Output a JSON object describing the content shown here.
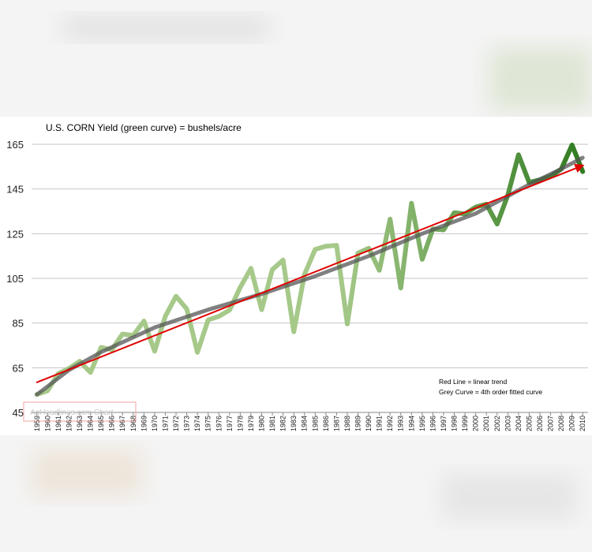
{
  "chart_data": {
    "type": "line",
    "title": "U.S. CORN Yield (green curve) = bushels/acre",
    "annotations": [
      "Red Line = linear trend",
      "Grey Curve = 4th order fitted curve"
    ],
    "watermark": "AgHeadlines.com Chart",
    "x": [
      1959,
      1960,
      1961,
      1962,
      1963,
      1964,
      1965,
      1966,
      1967,
      1968,
      1969,
      1970,
      1971,
      1972,
      1973,
      1974,
      1975,
      1976,
      1977,
      1978,
      1979,
      1980,
      1981,
      1982,
      1983,
      1984,
      1985,
      1986,
      1987,
      1988,
      1989,
      1990,
      1991,
      1992,
      1993,
      1994,
      1995,
      1996,
      1997,
      1998,
      1999,
      2000,
      2001,
      2002,
      2003,
      2004,
      2005,
      2006,
      2007,
      2008,
      2009,
      2010
    ],
    "series": [
      {
        "color": "#a6c98a",
        "color_end": "#2e7a1e",
        "values": [
          53.1,
          54.7,
          62.4,
          64.7,
          67.9,
          62.9,
          74.1,
          73.1,
          80.1,
          79.5,
          85.9,
          72.4,
          88.1,
          97.0,
          91.3,
          71.9,
          86.4,
          88.0,
          90.8,
          101.0,
          109.5,
          91.0,
          108.9,
          113.2,
          81.1,
          106.7,
          118.0,
          119.4,
          119.8,
          84.6,
          116.3,
          118.5,
          108.6,
          131.5,
          100.7,
          138.6,
          113.5,
          127.1,
          126.7,
          134.4,
          133.8,
          136.9,
          138.2,
          129.3,
          142.2,
          160.3,
          147.9,
          149.1,
          150.7,
          153.9,
          164.7,
          152.8
        ]
      },
      {
        "color": "#555555",
        "x": [
          1959,
          1962,
          1965,
          1970,
          1975,
          1980,
          1985,
          1990,
          1995,
          2000,
          2005,
          2008,
          2010
        ],
        "values": [
          53,
          64,
          72,
          83,
          91,
          98,
          106,
          115,
          125,
          134,
          147,
          154,
          159
        ]
      },
      {
        "color": "#e00000",
        "x": [
          1959,
          2010
        ],
        "values": [
          58.5,
          155.5
        ]
      }
    ],
    "ylim": [
      45,
      165
    ],
    "yticks": [
      45,
      65,
      85,
      105,
      125,
      145,
      165
    ],
    "grid": true
  }
}
